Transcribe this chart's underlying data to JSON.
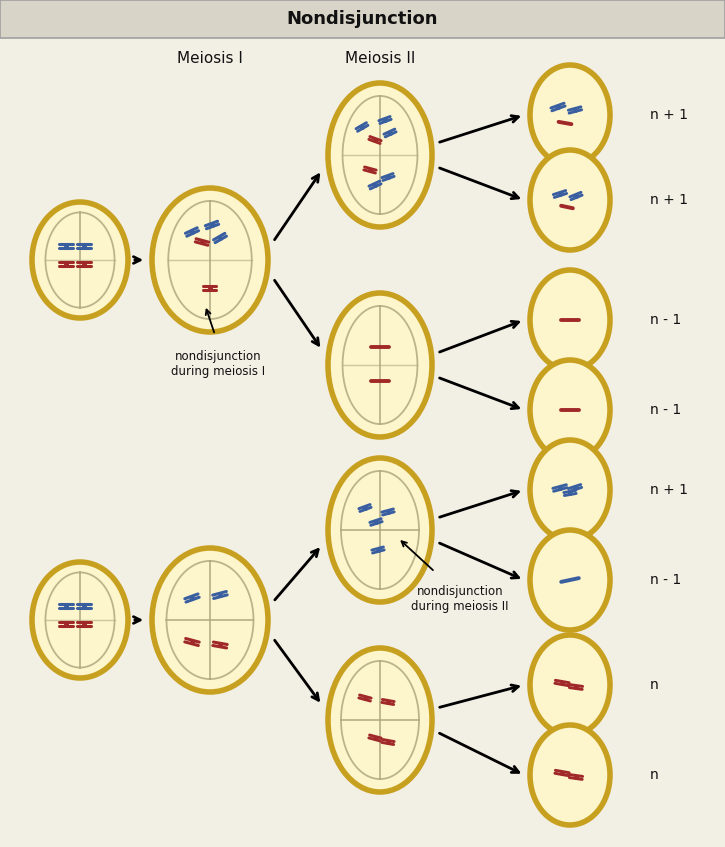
{
  "title": "Nondisjunction",
  "title_bg": "#d8d4c8",
  "title_border": "#a0a0a0",
  "bg_color": "#f2efe5",
  "cell_fill": "#fdf5cc",
  "cell_edge": "#c8a020",
  "cell_edge_lw": 4.0,
  "spindle_color": "#b0a880",
  "chr_blue": "#3a5fa0",
  "chr_red": "#a02828",
  "text_color": "#111111",
  "label_meiosis1": "Meiosis I",
  "label_meiosis2": "Meiosis II",
  "label_nondisj1": "nondisjunction\nduring meiosis I",
  "label_nondisj2": "nondisjunction\nduring meiosis II",
  "outcome_labels_top": [
    "n + 1",
    "n + 1",
    "n - 1",
    "n - 1"
  ],
  "outcome_labels_bot": [
    "n + 1",
    "n - 1",
    "n",
    "n"
  ],
  "fig_w": 7.25,
  "fig_h": 8.47,
  "dpi": 100
}
